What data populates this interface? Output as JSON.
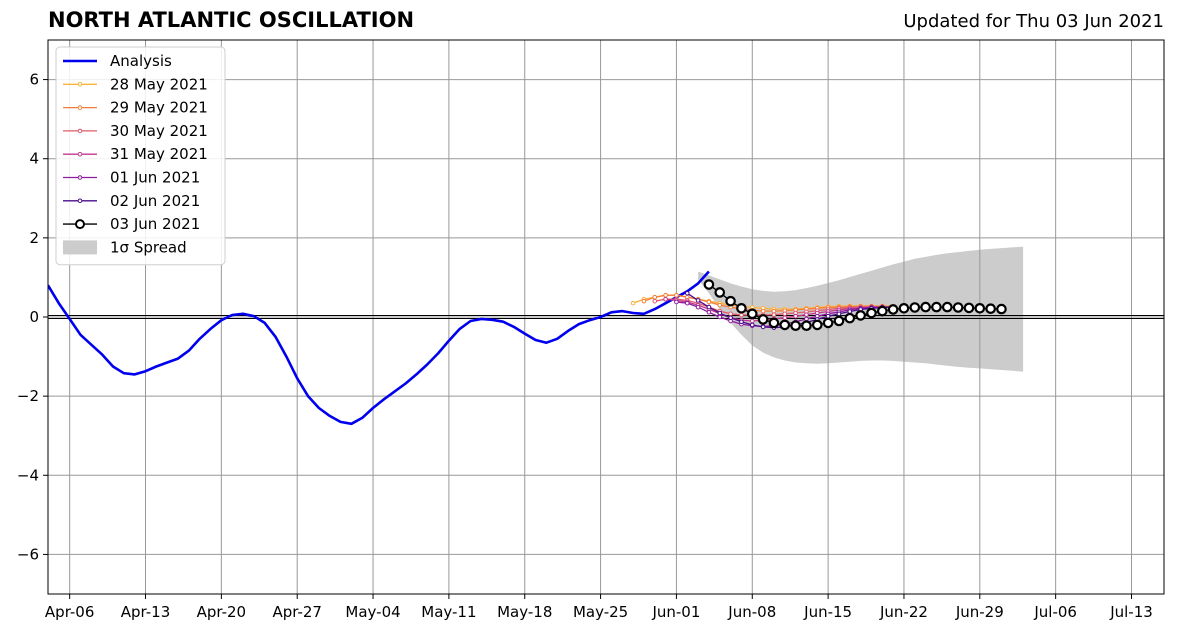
{
  "chart_data": {
    "type": "line",
    "title": "NORTH ATLANTIC OSCILLATION",
    "subtitle": "Updated for Thu 03 Jun 2021",
    "xlabel": "",
    "ylabel": "",
    "x_range": [
      "2021-04-04",
      "2021-07-16"
    ],
    "ylim": [
      -7,
      7
    ],
    "y_ticks": [
      -6,
      -4,
      -2,
      0,
      2,
      4,
      6
    ],
    "y_tick_labels": [
      "−6",
      "−4",
      "−2",
      "0",
      "2",
      "4",
      "6"
    ],
    "x_ticks": [
      "2021-04-06",
      "2021-04-13",
      "2021-04-20",
      "2021-04-27",
      "2021-05-04",
      "2021-05-11",
      "2021-05-18",
      "2021-05-25",
      "2021-06-01",
      "2021-06-08",
      "2021-06-15",
      "2021-06-22",
      "2021-06-29",
      "2021-07-06",
      "2021-07-13"
    ],
    "x_tick_labels": [
      "Apr-06",
      "Apr-13",
      "Apr-20",
      "Apr-27",
      "May-04",
      "May-11",
      "May-18",
      "May-25",
      "Jun-01",
      "Jun-08",
      "Jun-15",
      "Jun-22",
      "Jun-29",
      "Jul-06",
      "Jul-13"
    ],
    "grid": true,
    "legend_position": "top-left",
    "colors": {
      "analysis": "#0000ee",
      "spread": "#cccccc",
      "axis": "#000000",
      "grid": "#999999"
    },
    "analysis": {
      "name": "Analysis",
      "color": "#0000ee",
      "start": "2021-04-04",
      "values": [
        0.8,
        0.35,
        -0.05,
        -0.45,
        -0.7,
        -0.95,
        -1.25,
        -1.42,
        -1.45,
        -1.37,
        -1.25,
        -1.15,
        -1.05,
        -0.85,
        -0.55,
        -0.3,
        -0.08,
        0.05,
        0.08,
        0.02,
        -0.15,
        -0.5,
        -1.0,
        -1.55,
        -2.0,
        -2.3,
        -2.5,
        -2.65,
        -2.7,
        -2.55,
        -2.3,
        -2.08,
        -1.88,
        -1.68,
        -1.45,
        -1.2,
        -0.92,
        -0.6,
        -0.3,
        -0.1,
        -0.05,
        -0.07,
        -0.12,
        -0.25,
        -0.42,
        -0.58,
        -0.65,
        -0.55,
        -0.35,
        -0.18,
        -0.08,
        0.0,
        0.12,
        0.15,
        0.1,
        0.08,
        0.2,
        0.35,
        0.5,
        0.65,
        0.85,
        1.15
      ]
    },
    "forecasts": [
      {
        "name": "28 May 2021",
        "color": "#fbb13c",
        "start": "2021-05-28",
        "values": [
          0.35,
          0.45,
          0.5,
          0.55,
          0.55,
          0.5,
          0.45,
          0.4,
          0.35,
          0.3,
          0.27,
          0.24,
          0.22,
          0.2,
          0.2,
          0.2,
          0.22,
          0.24,
          0.26,
          0.27,
          0.28,
          0.28,
          0.28,
          0.28,
          0.27
        ]
      },
      {
        "name": "29 May 2021",
        "color": "#f57d3a",
        "start": "2021-05-29",
        "values": [
          0.4,
          0.5,
          0.55,
          0.55,
          0.5,
          0.45,
          0.38,
          0.3,
          0.25,
          0.2,
          0.17,
          0.15,
          0.15,
          0.16,
          0.18,
          0.2,
          0.22,
          0.24,
          0.25,
          0.26,
          0.27,
          0.27,
          0.27,
          0.26
        ]
      },
      {
        "name": "30 May 2021",
        "color": "#e05b6b",
        "start": "2021-05-30",
        "values": [
          0.4,
          0.45,
          0.45,
          0.42,
          0.35,
          0.25,
          0.15,
          0.08,
          0.05,
          0.05,
          0.05,
          0.06,
          0.08,
          0.1,
          0.13,
          0.16,
          0.19,
          0.22,
          0.24,
          0.25,
          0.26,
          0.26,
          0.26
        ]
      },
      {
        "name": "31 May 2021",
        "color": "#c2378c",
        "start": "2021-05-31",
        "values": [
          0.45,
          0.42,
          0.38,
          0.3,
          0.2,
          0.08,
          -0.02,
          -0.08,
          -0.1,
          -0.08,
          -0.05,
          -0.02,
          0.02,
          0.06,
          0.1,
          0.14,
          0.18,
          0.21,
          0.23,
          0.25,
          0.25,
          0.25
        ]
      },
      {
        "name": "01 Jun 2021",
        "color": "#8e1b9e",
        "start": "2021-06-01",
        "values": [
          0.38,
          0.35,
          0.25,
          0.12,
          0.0,
          -0.1,
          -0.18,
          -0.22,
          -0.24,
          -0.22,
          -0.18,
          -0.12,
          -0.05,
          0.02,
          0.08,
          0.13,
          0.18,
          0.22,
          0.24,
          0.25,
          0.25
        ]
      },
      {
        "name": "02 Jun 2021",
        "color": "#4a0c8c",
        "start": "2021-06-02",
        "values": [
          0.6,
          0.42,
          0.25,
          0.1,
          -0.02,
          -0.12,
          -0.2,
          -0.25,
          -0.27,
          -0.25,
          -0.2,
          -0.14,
          -0.06,
          0.02,
          0.08,
          0.14,
          0.19,
          0.22,
          0.24,
          0.25
        ]
      },
      {
        "name": "03 Jun 2021",
        "color": "#000000",
        "start": "2021-06-04",
        "values": [
          0.82,
          0.62,
          0.4,
          0.22,
          0.08,
          -0.06,
          -0.15,
          -0.2,
          -0.22,
          -0.22,
          -0.2,
          -0.15,
          -0.1,
          -0.03,
          0.04,
          0.1,
          0.15,
          0.19,
          0.22,
          0.24,
          0.25,
          0.25,
          0.25,
          0.24,
          0.23,
          0.22,
          0.21,
          0.2
        ]
      }
    ],
    "spread": {
      "name": "1σ Spread",
      "color": "#cccccc",
      "start": "2021-06-03",
      "upper": [
        1.15,
        1.05,
        0.95,
        0.85,
        0.77,
        0.7,
        0.66,
        0.64,
        0.65,
        0.68,
        0.73,
        0.79,
        0.86,
        0.93,
        1.01,
        1.09,
        1.17,
        1.25,
        1.33,
        1.4,
        1.47,
        1.52,
        1.57,
        1.61,
        1.64,
        1.67,
        1.7,
        1.72,
        1.74,
        1.76,
        1.78
      ],
      "lower": [
        0.95,
        0.6,
        0.2,
        -0.15,
        -0.45,
        -0.72,
        -0.9,
        -1.02,
        -1.1,
        -1.15,
        -1.17,
        -1.18,
        -1.17,
        -1.15,
        -1.13,
        -1.11,
        -1.1,
        -1.1,
        -1.11,
        -1.13,
        -1.15,
        -1.17,
        -1.2,
        -1.23,
        -1.26,
        -1.28,
        -1.3,
        -1.32,
        -1.34,
        -1.36,
        -1.38
      ]
    }
  }
}
